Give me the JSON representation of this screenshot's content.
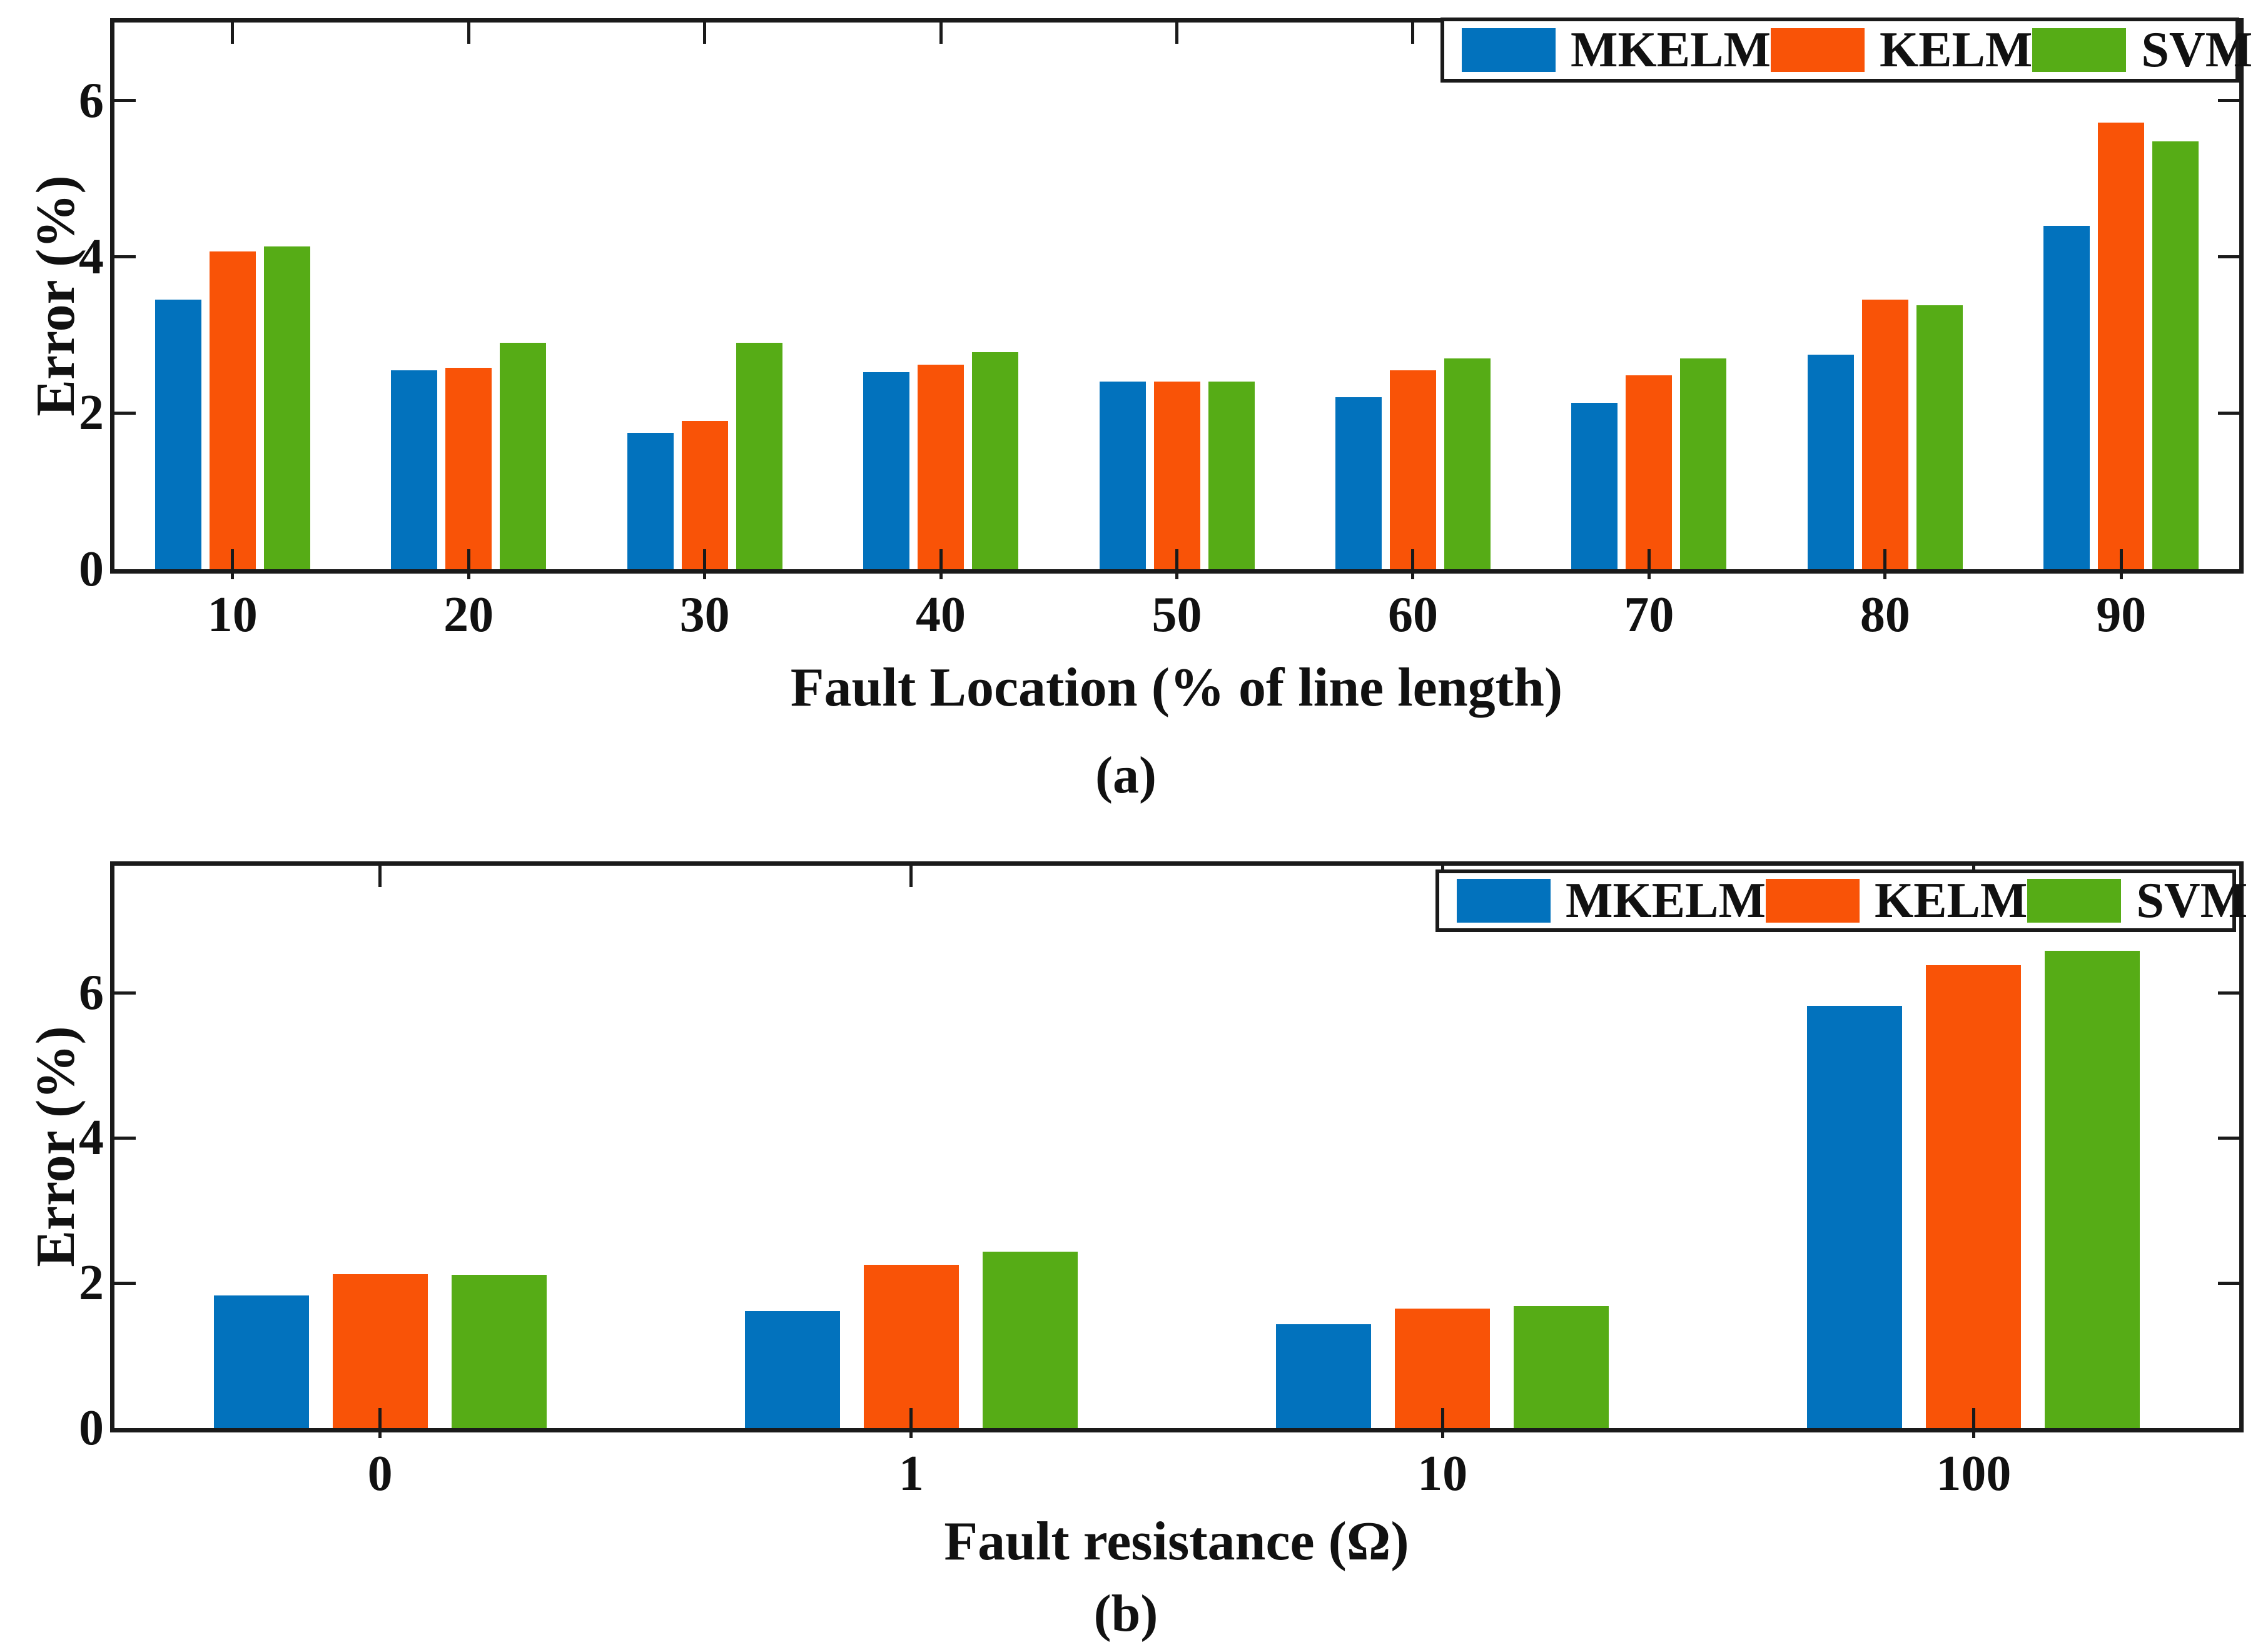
{
  "figure": {
    "background": "#ffffff",
    "ink": "#1a1a1a"
  },
  "colors": {
    "mkelm": "#0272BD",
    "kelm": "#F95307",
    "svm": "#56AC16"
  },
  "chart_data": [
    {
      "id": "a",
      "type": "bar",
      "title": "",
      "xlabel": "Fault Location (% of line length)",
      "ylabel": "Error (%)",
      "caption": "(a)",
      "categories": [
        "10",
        "20",
        "30",
        "40",
        "50",
        "60",
        "70",
        "80",
        "90"
      ],
      "yticks": [
        "0",
        "2",
        "4",
        "6"
      ],
      "ytick_values": [
        0,
        2,
        4,
        6
      ],
      "ylim": [
        0,
        7
      ],
      "grid": "off",
      "legend_position": "top-right",
      "series": [
        {
          "name": "MKELM",
          "color": "#0272BD",
          "values": [
            3.45,
            2.55,
            1.75,
            2.52,
            2.4,
            2.2,
            2.13,
            2.75,
            4.4
          ]
        },
        {
          "name": "KELM",
          "color": "#F95307",
          "values": [
            4.07,
            2.58,
            1.9,
            2.62,
            2.4,
            2.55,
            2.48,
            3.45,
            5.72
          ]
        },
        {
          "name": "SVM",
          "color": "#56AC16",
          "values": [
            4.13,
            2.9,
            2.9,
            2.78,
            2.4,
            2.7,
            2.7,
            3.38,
            5.48
          ]
        }
      ]
    },
    {
      "id": "b",
      "type": "bar",
      "title": "",
      "xlabel": "Fault resistance (Ω)",
      "ylabel": "Error (%)",
      "caption": "(b)",
      "categories": [
        "0",
        "1",
        "10",
        "100"
      ],
      "yticks": [
        "0",
        "2",
        "4",
        "6"
      ],
      "ytick_values": [
        0,
        2,
        4,
        6
      ],
      "ylim": [
        0,
        7.75
      ],
      "grid": "off",
      "legend_position": "top-right",
      "series": [
        {
          "name": "MKELM",
          "color": "#0272BD",
          "values": [
            1.83,
            1.61,
            1.43,
            5.82
          ]
        },
        {
          "name": "KELM",
          "color": "#F95307",
          "values": [
            2.12,
            2.25,
            1.65,
            6.38
          ]
        },
        {
          "name": "SVM",
          "color": "#56AC16",
          "values": [
            2.11,
            2.43,
            1.68,
            6.58
          ]
        }
      ]
    }
  ]
}
